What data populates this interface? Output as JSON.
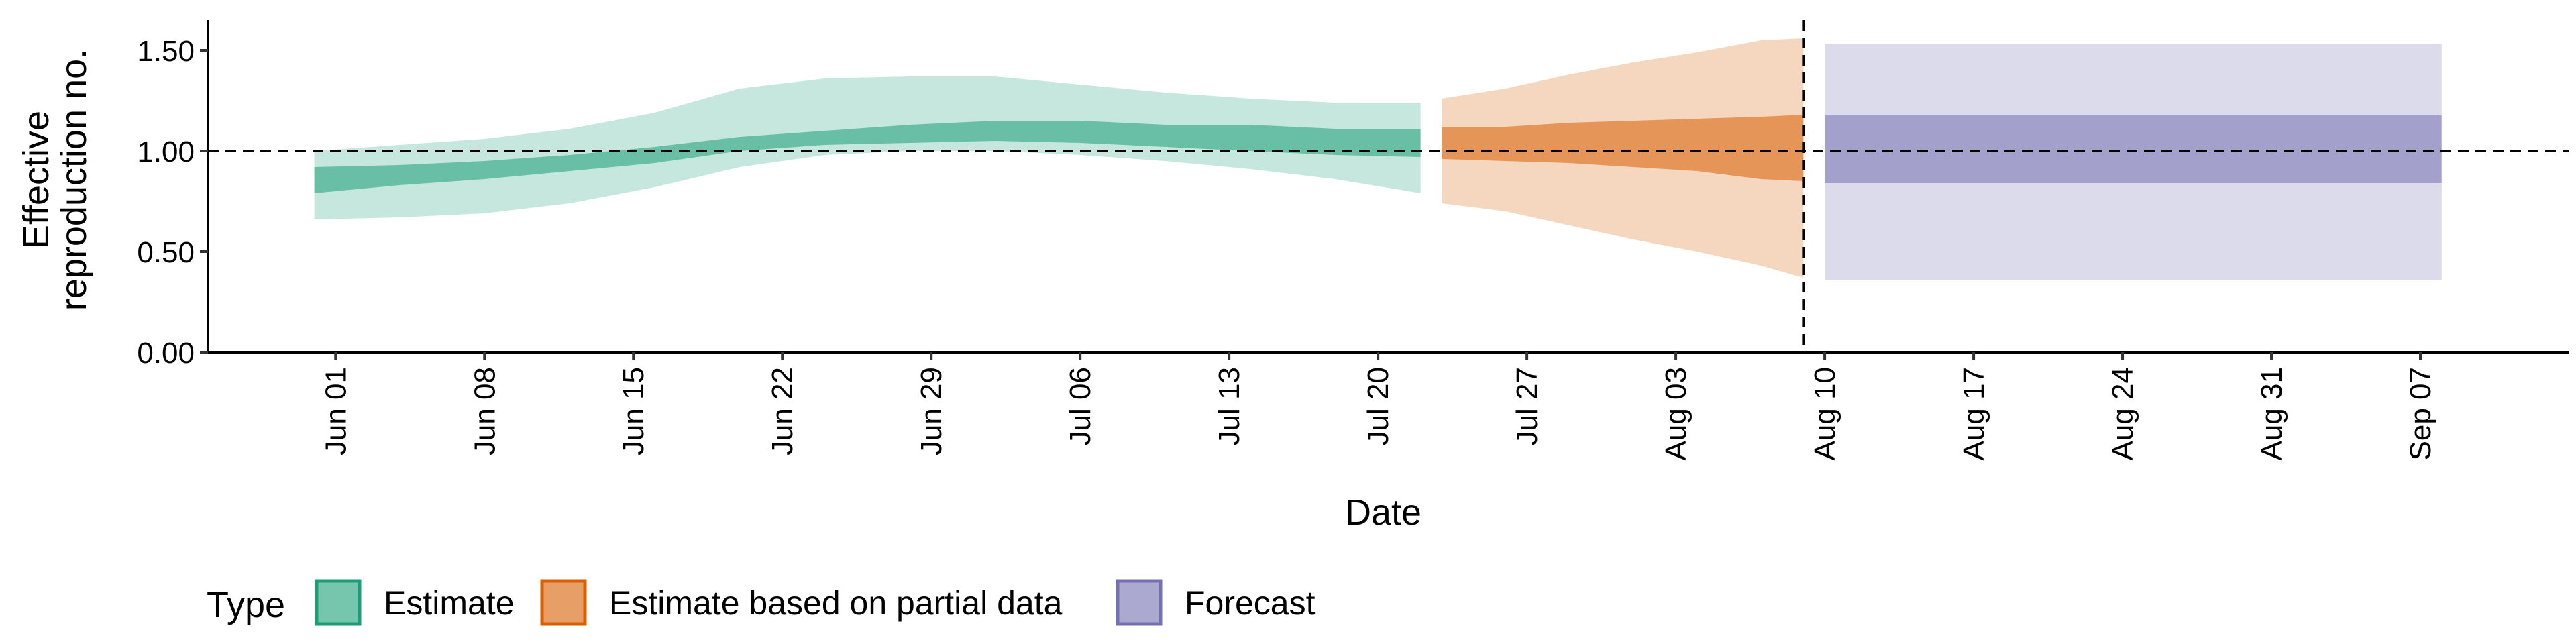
{
  "chart_data": {
    "type": "area",
    "title": "",
    "xlabel": "Date",
    "ylabel_lines": [
      "Effective",
      "reproduction no."
    ],
    "ylim": [
      0,
      1.65
    ],
    "yticks": [
      0.0,
      0.5,
      1.0,
      1.5
    ],
    "ytick_labels": [
      "0.00",
      "0.50",
      "1.00",
      "1.50"
    ],
    "xticks": [
      "2020-06-01",
      "2020-06-08",
      "2020-06-15",
      "2020-06-22",
      "2020-06-29",
      "2020-07-06",
      "2020-07-13",
      "2020-07-20",
      "2020-07-27",
      "2020-08-03",
      "2020-08-10",
      "2020-08-17",
      "2020-08-24",
      "2020-08-31",
      "2020-09-07"
    ],
    "xtick_labels": [
      "Jun 01",
      "Jun 08",
      "Jun 15",
      "Jun 22",
      "Jun 29",
      "Jul 06",
      "Jul 13",
      "Jul 20",
      "Jul 27",
      "Aug 03",
      "Aug 10",
      "Aug 17",
      "Aug 24",
      "Aug 31",
      "Sep 07"
    ],
    "xlim": [
      "2020-05-26",
      "2020-09-14"
    ],
    "hline_y": 1.0,
    "vline_x": "2020-08-09",
    "legend": {
      "title": "Type",
      "position": "bottom",
      "items": [
        {
          "label": "Estimate",
          "color": "#1b9e77"
        },
        {
          "label": "Estimate based on partial data",
          "color": "#d95f02"
        },
        {
          "label": "Forecast",
          "color": "#7570b3"
        }
      ]
    },
    "series": [
      {
        "name": "Estimate",
        "color": "#1b9e77",
        "x": [
          "2020-05-31",
          "2020-06-04",
          "2020-06-08",
          "2020-06-12",
          "2020-06-16",
          "2020-06-20",
          "2020-06-24",
          "2020-06-28",
          "2020-07-02",
          "2020-07-06",
          "2020-07-10",
          "2020-07-14",
          "2020-07-18",
          "2020-07-22"
        ],
        "lower90": [
          0.66,
          0.67,
          0.69,
          0.74,
          0.82,
          0.92,
          0.98,
          1.0,
          1.0,
          0.98,
          0.95,
          0.91,
          0.86,
          0.79
        ],
        "upper90": [
          1.0,
          1.03,
          1.06,
          1.11,
          1.19,
          1.31,
          1.36,
          1.37,
          1.37,
          1.33,
          1.29,
          1.26,
          1.24,
          1.24
        ],
        "lower50": [
          0.79,
          0.83,
          0.86,
          0.9,
          0.94,
          1.0,
          1.03,
          1.04,
          1.05,
          1.04,
          1.02,
          1.0,
          0.98,
          0.97
        ],
        "upper50": [
          0.92,
          0.93,
          0.95,
          0.98,
          1.02,
          1.07,
          1.1,
          1.13,
          1.15,
          1.15,
          1.13,
          1.13,
          1.11,
          1.11
        ]
      },
      {
        "name": "Estimate based on partial data",
        "color": "#d95f02",
        "x": [
          "2020-07-23",
          "2020-07-26",
          "2020-07-29",
          "2020-08-01",
          "2020-08-04",
          "2020-08-07",
          "2020-08-09"
        ],
        "lower90": [
          0.74,
          0.7,
          0.63,
          0.56,
          0.5,
          0.43,
          0.37
        ],
        "upper90": [
          1.26,
          1.31,
          1.38,
          1.44,
          1.49,
          1.55,
          1.56
        ],
        "lower50": [
          0.96,
          0.95,
          0.94,
          0.92,
          0.9,
          0.86,
          0.85
        ],
        "upper50": [
          1.12,
          1.12,
          1.14,
          1.15,
          1.16,
          1.17,
          1.18
        ]
      },
      {
        "name": "Forecast",
        "color": "#7570b3",
        "x": [
          "2020-08-10",
          "2020-09-08"
        ],
        "lower90": [
          0.36,
          0.36
        ],
        "upper90": [
          1.53,
          1.53
        ],
        "lower50": [
          0.84,
          0.84
        ],
        "upper50": [
          1.18,
          1.18
        ]
      }
    ]
  }
}
